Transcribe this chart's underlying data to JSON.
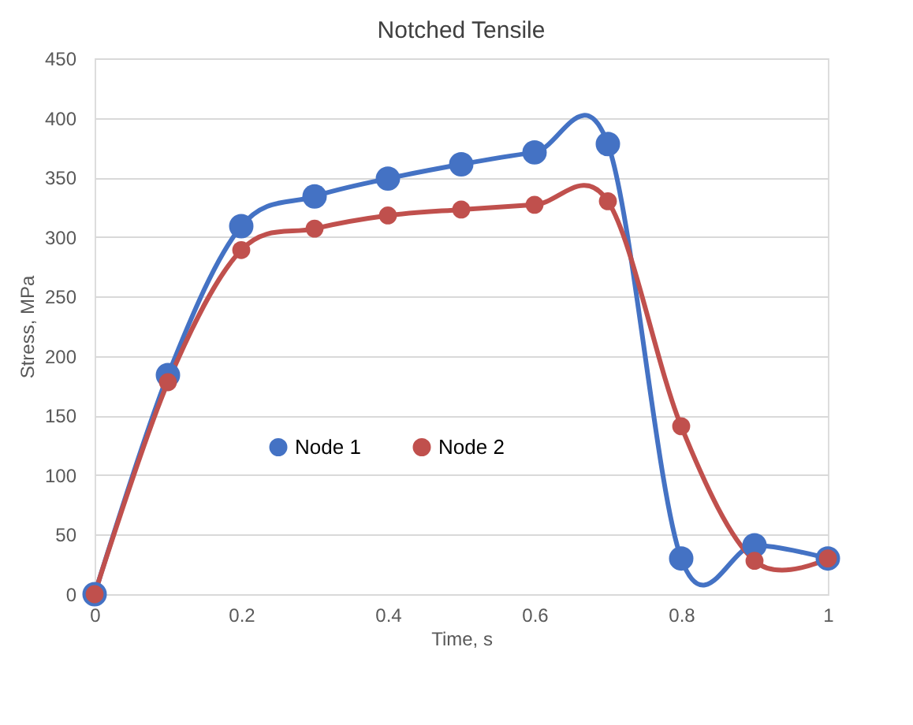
{
  "chart_data": {
    "type": "line",
    "title": "Notched Tensile",
    "xlabel": "Time, s",
    "ylabel": "Stress, MPa",
    "x": [
      0,
      0.1,
      0.2,
      0.3,
      0.4,
      0.5,
      0.6,
      0.7,
      0.8,
      0.9,
      1.0
    ],
    "series": [
      {
        "name": "Node 1",
        "color": "#4472c4",
        "values": [
          0,
          184,
          309,
          334,
          349,
          361,
          371,
          378,
          30,
          41,
          30
        ]
      },
      {
        "name": "Node 2",
        "color": "#c0504d",
        "values": [
          0,
          178,
          289,
          307,
          318,
          323,
          327,
          330,
          141,
          28,
          30
        ]
      }
    ],
    "xlim": [
      0,
      1
    ],
    "xticks": [
      0,
      0.2,
      0.4,
      0.6,
      0.8,
      1
    ],
    "ylim": [
      0,
      450
    ],
    "yticks": [
      0,
      50,
      100,
      150,
      200,
      250,
      300,
      350,
      400,
      450
    ],
    "grid": "y",
    "legend": "center",
    "marker": "circle",
    "line_style": "solid"
  }
}
